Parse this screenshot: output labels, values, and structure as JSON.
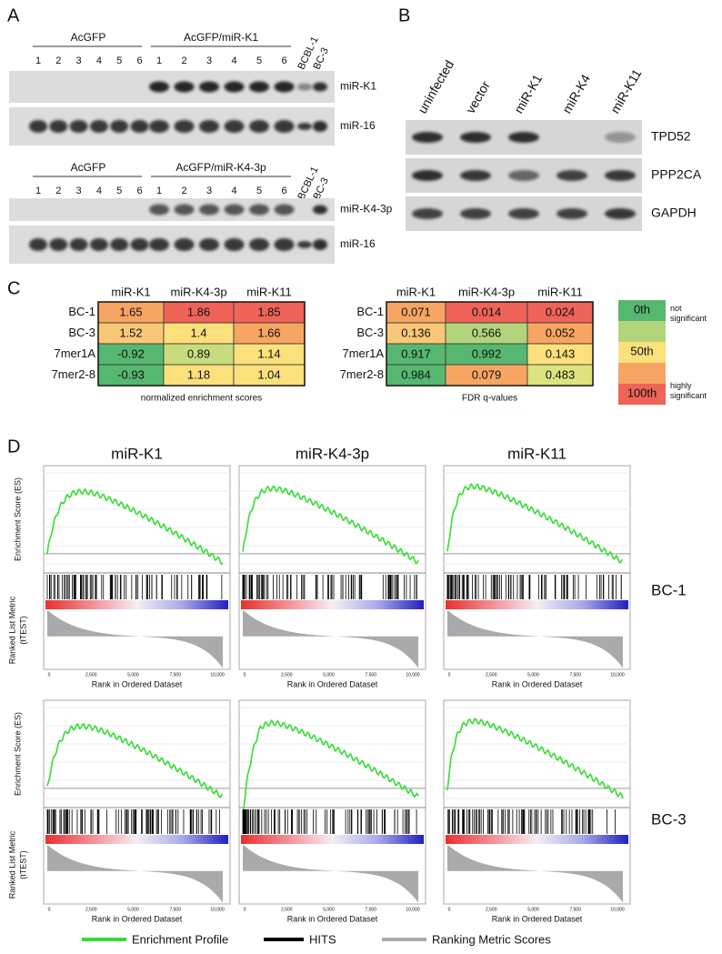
{
  "panel_a": {
    "label": "A",
    "blots": [
      {
        "groups": [
          "AcGFP",
          "AcGFP/miR-K1"
        ],
        "lanes": [
          "1",
          "2",
          "3",
          "4",
          "5",
          "6"
        ],
        "controls": [
          "BCBL-1",
          "BC-3"
        ],
        "bands": [
          "miR-K1",
          "miR-16"
        ]
      },
      {
        "groups": [
          "AcGFP",
          "AcGFP/miR-K4-3p"
        ],
        "lanes": [
          "1",
          "2",
          "3",
          "4",
          "5",
          "6"
        ],
        "controls": [
          "BCBL-1",
          "BC-3"
        ],
        "bands": [
          "miR-K4-3p",
          "miR-16"
        ]
      }
    ]
  },
  "panel_b": {
    "label": "B",
    "lanes": [
      "uninfected",
      "vector",
      "miR-K1",
      "miR-K4",
      "miR-K11"
    ],
    "bands": [
      "TPD52",
      "PPP2CA",
      "GAPDH"
    ]
  },
  "panel_c": {
    "label": "C",
    "tables": [
      {
        "columns": [
          "miR-K1",
          "miR-K4-3p",
          "miR-K11"
        ],
        "rows": [
          "BC-1",
          "BC-3",
          "7mer1A",
          "7mer2-8"
        ],
        "cells": [
          [
            1.65,
            1.86,
            1.85
          ],
          [
            1.52,
            1.4,
            1.66
          ],
          [
            -0.92,
            0.89,
            1.14
          ],
          [
            -0.93,
            1.18,
            1.04
          ]
        ],
        "cell_colors": [
          [
            "#f6a563",
            "#ef6358",
            "#ef6358"
          ],
          [
            "#f9c778",
            "#fbe07c",
            "#f6a563"
          ],
          [
            "#56b870",
            "#c8dc7e",
            "#fbe07c"
          ],
          [
            "#56b870",
            "#fbe07c",
            "#fbe07c"
          ]
        ],
        "caption": "normalized enrichment scores"
      },
      {
        "columns": [
          "miR-K1",
          "miR-K4-3p",
          "miR-K11"
        ],
        "rows": [
          "BC-1",
          "BC-3",
          "7mer1A",
          "7mer2-8"
        ],
        "cells": [
          [
            0.071,
            0.014,
            0.024
          ],
          [
            0.136,
            0.566,
            0.052
          ],
          [
            0.917,
            0.992,
            0.143
          ],
          [
            0.984,
            0.079,
            0.483
          ]
        ],
        "cell_colors": [
          [
            "#f6a563",
            "#ef6358",
            "#ef6358"
          ],
          [
            "#f9c778",
            "#b2d57c",
            "#f6a563"
          ],
          [
            "#56b870",
            "#56b870",
            "#fbe07c"
          ],
          [
            "#56b870",
            "#f6a563",
            "#dde37e"
          ]
        ],
        "caption": "FDR q-values"
      }
    ],
    "legend": {
      "levels": [
        "0th",
        "50th",
        "100th"
      ],
      "notes": [
        "not significant",
        "highly significant"
      ],
      "colors": [
        "#56b870",
        "#b2d57c",
        "#fbe07c",
        "#f6a563",
        "#ef6358"
      ]
    }
  },
  "panel_d": {
    "label": "D",
    "columns": [
      "miR-K1",
      "miR-K4-3p",
      "miR-K11"
    ],
    "rows": [
      "BC-1",
      "BC-3"
    ],
    "es_axis": "Enrichment Score (ES)",
    "metric_axis": [
      "Ranked List Metric",
      "(tTEST)"
    ],
    "x_axis": "Rank in Ordered Dataset",
    "xticks": [
      "0",
      "2,500",
      "5,000",
      "7,500",
      "10,000"
    ],
    "legend": [
      "Enrichment Profile",
      "HITS",
      "Ranking Metric Scores"
    ]
  }
}
